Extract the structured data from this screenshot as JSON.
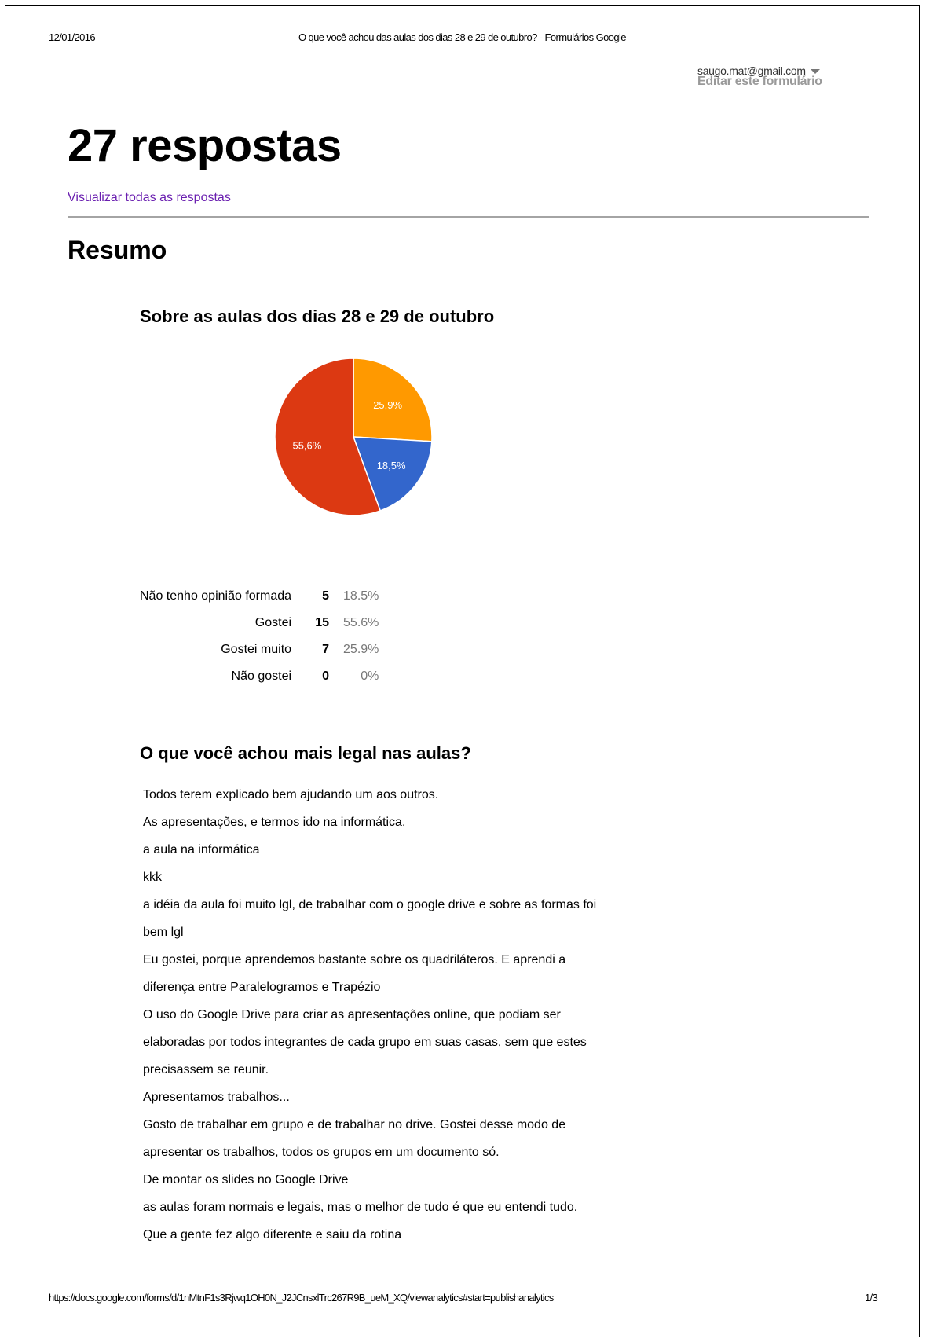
{
  "print_header": {
    "date": "12/01/2016",
    "title": "O que você achou das aulas dos dias 28 e 29 de outubro? - Formulários Google"
  },
  "account": {
    "email": "saugo.mat@gmail.com",
    "edit_link": "Editar este formulário"
  },
  "main": {
    "responses_title": "27 respostas",
    "view_all_link": "Visualizar todas as respostas",
    "summary_heading": "Resumo"
  },
  "question1": {
    "title": "Sobre as aulas dos dias 28 e 29 de outubro",
    "legend": [
      {
        "label": "Não tenho opinião formada",
        "count": "5",
        "percent": "18.5%"
      },
      {
        "label": "Gostei",
        "count": "15",
        "percent": "55.6%"
      },
      {
        "label": "Gostei muito",
        "count": "7",
        "percent": "25.9%"
      },
      {
        "label": "Não gostei",
        "count": "0",
        "percent": "0%"
      }
    ]
  },
  "chart_data": {
    "type": "pie",
    "title": "Sobre as aulas dos dias 28 e 29 de outubro",
    "slices": [
      {
        "category": "Gostei muito",
        "value": 7,
        "label": "25,9%",
        "color": "#ff9900"
      },
      {
        "category": "Não tenho opinião formada",
        "value": 5,
        "label": "18,5%",
        "color": "#3366cc"
      },
      {
        "category": "Gostei",
        "value": 15,
        "label": "55,6%",
        "color": "#dc3912"
      }
    ]
  },
  "question2": {
    "title": "O que você achou mais legal nas aulas?",
    "answers": [
      "Todos terem explicado bem ajudando um aos outros.",
      "As apresentações, e termos ido na informática.",
      "a aula na informática",
      "kkk",
      "a idéia da aula foi muito lgl, de trabalhar com o google drive e sobre as formas foi",
      "bem lgl",
      "Eu gostei, porque aprendemos bastante sobre os quadriláteros. E aprendi a",
      "diferença entre Paralelogramos e Trapézio",
      "O uso do Google Drive para criar as apresentações online, que podiam ser",
      "elaboradas por todos integrantes de cada grupo em suas casas, sem que estes",
      "precisassem se reunir.",
      "Apresentamos trabalhos...",
      "Gosto de trabalhar em grupo e de trabalhar no drive. Gostei desse modo de",
      "apresentar os trabalhos, todos os grupos em um documento só.",
      "De montar os slides no Google Drive",
      "as aulas foram normais e legais, mas o melhor de tudo é que eu entendi tudo.",
      "Que a gente fez algo diferente e saiu da rotina"
    ]
  },
  "print_footer": {
    "url": "https://docs.google.com/forms/d/1nMtnF1s3Rjwq1OH0N_J2JCnsxlTrc267R9B_ueM_XQ/viewanalytics#start=publishanalytics",
    "page": "1/3"
  }
}
